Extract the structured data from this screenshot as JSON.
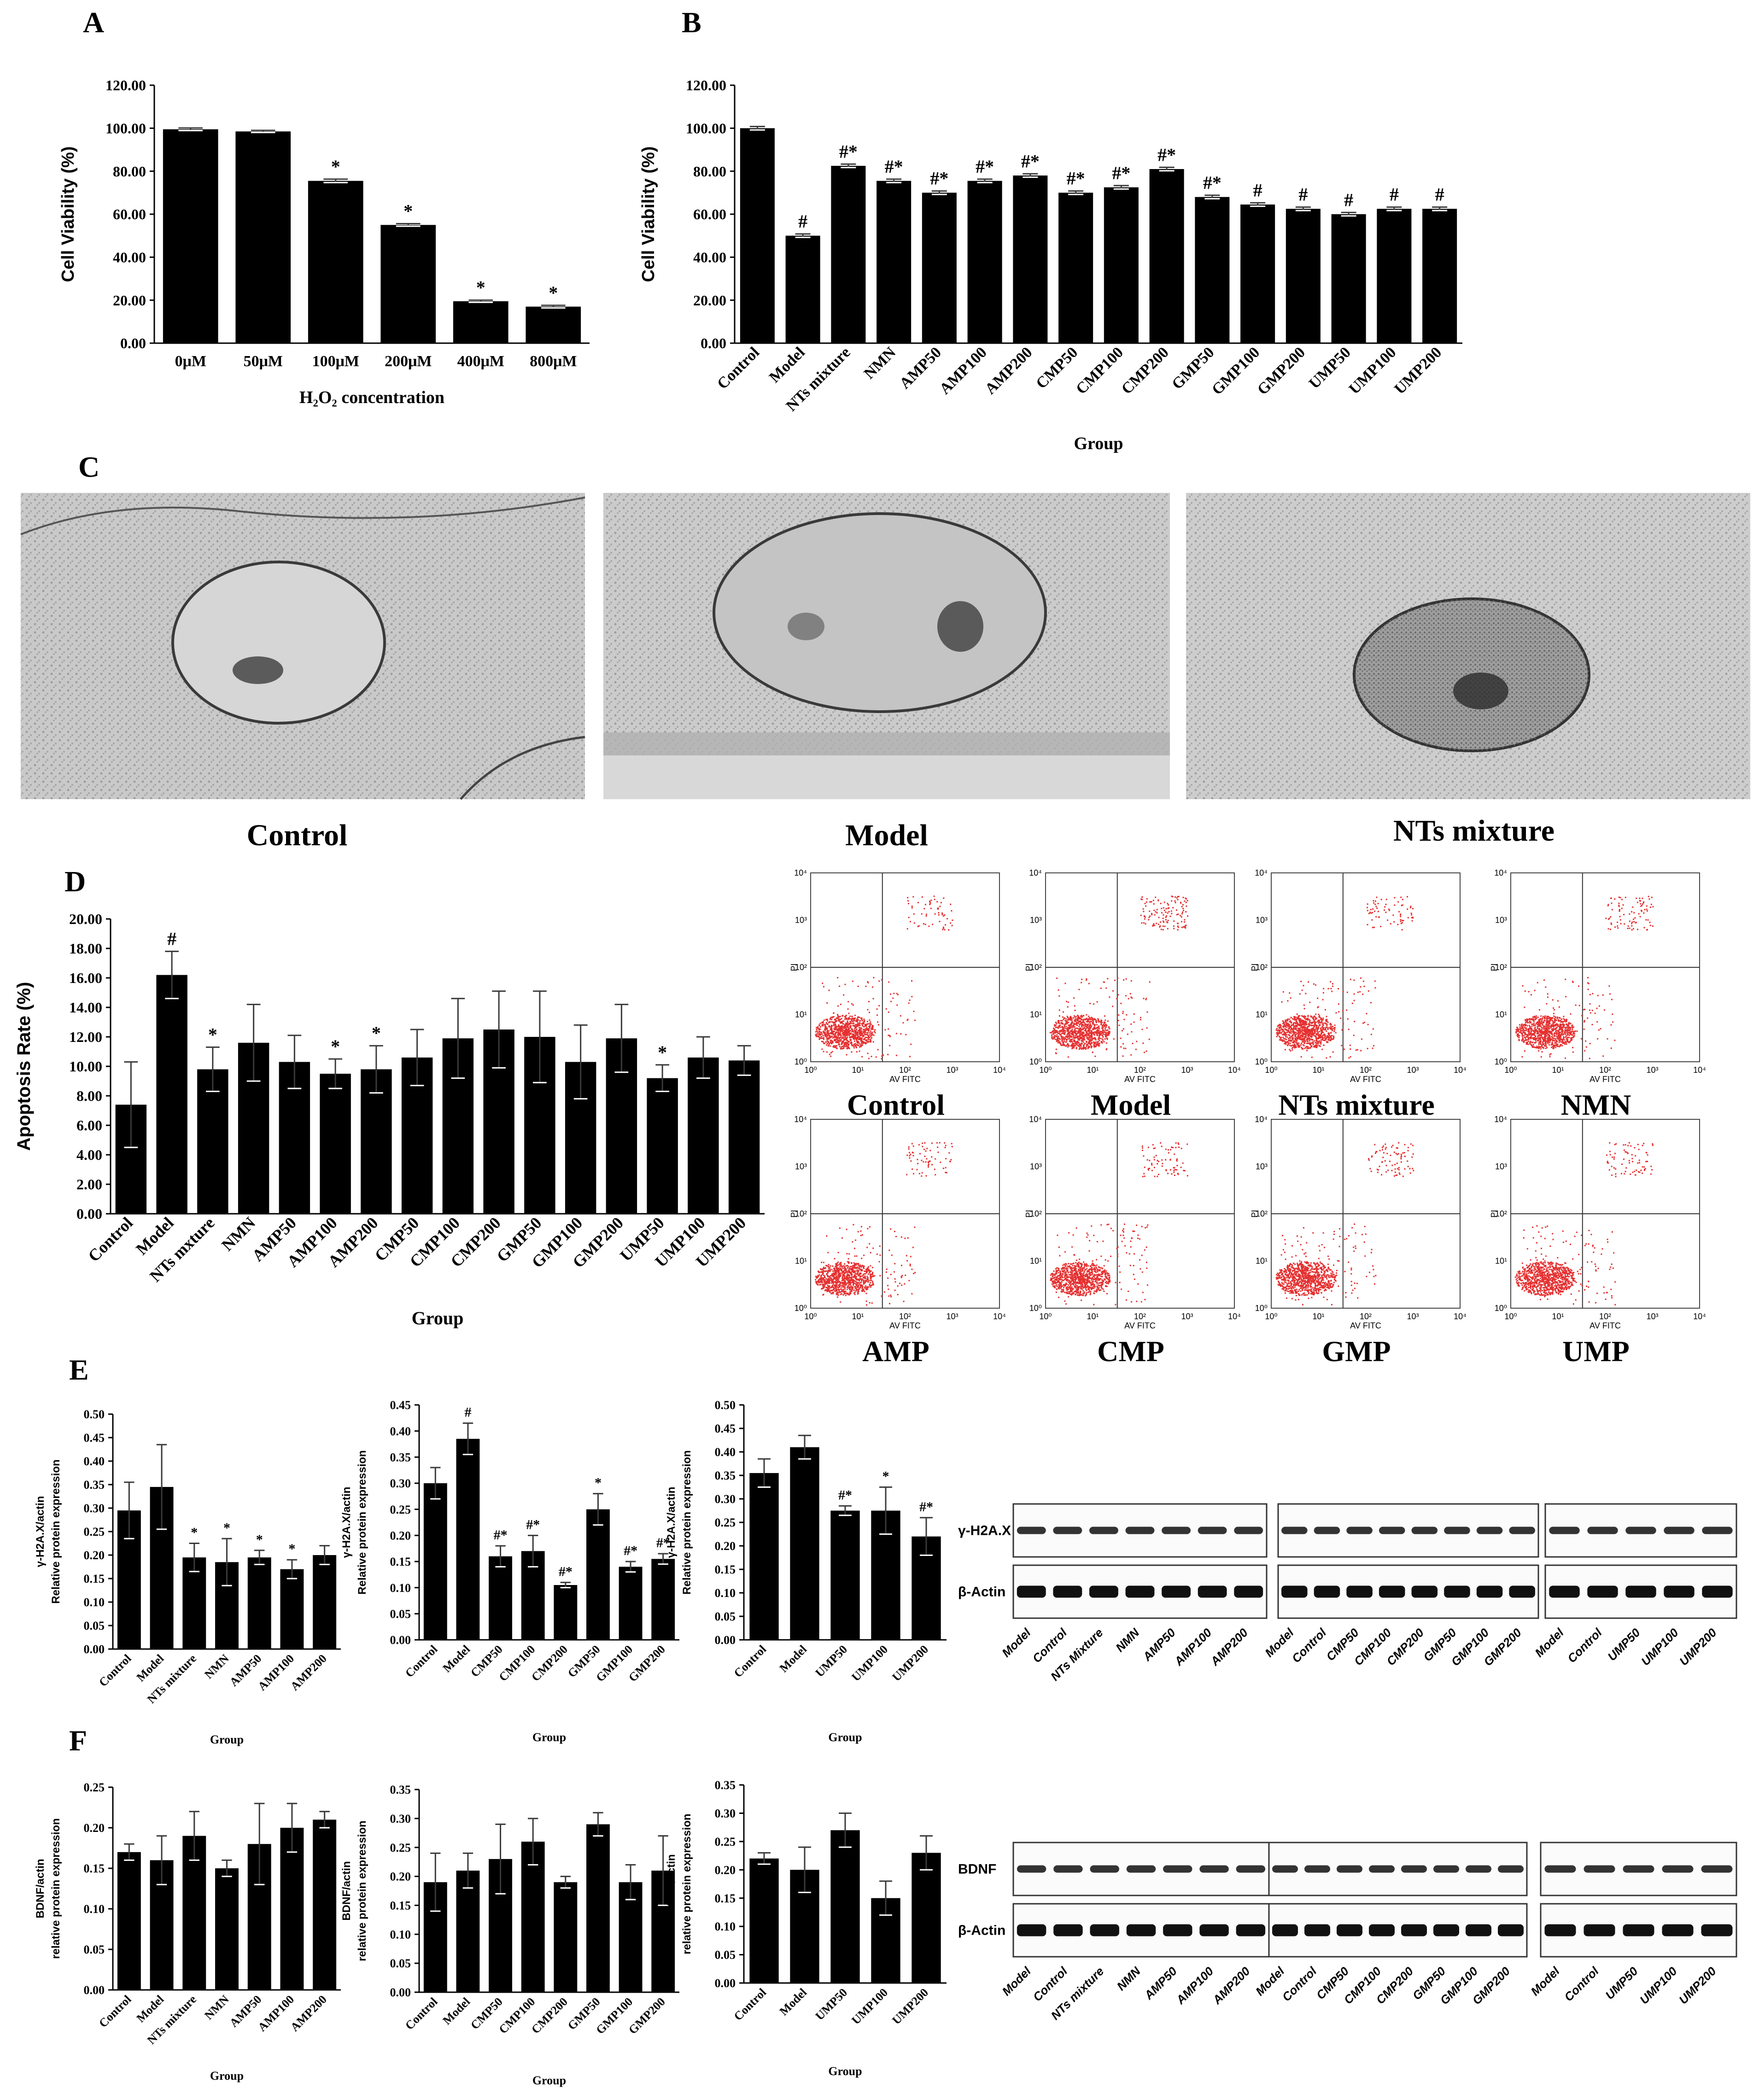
{
  "panel_labels": {
    "A": "A",
    "B": "B",
    "C": "C",
    "D": "D",
    "E": "E",
    "F": "F"
  },
  "panel_c": {
    "captions": [
      "Control",
      "Model",
      "NTs mixture"
    ]
  },
  "panel_d_flow": {
    "axis_x_label": "AV FITC",
    "axis_y_label": "PI",
    "log_ticks": [
      "10⁰",
      "10¹",
      "10²",
      "10³",
      "10⁴"
    ],
    "plots": [
      {
        "label": "Control",
        "ur_level": 0.12
      },
      {
        "label": "Model",
        "ur_level": 0.26
      },
      {
        "label": "NTs mixture",
        "ur_level": 0.14
      },
      {
        "label": "NMN",
        "ur_level": 0.18
      },
      {
        "label": "AMP",
        "ur_level": 0.14
      },
      {
        "label": "CMP",
        "ur_level": 0.15
      },
      {
        "label": "GMP",
        "ur_level": 0.16
      },
      {
        "label": "UMP",
        "ur_level": 0.15
      }
    ]
  },
  "blots": {
    "E": {
      "rows": [
        "γ-H2A.X",
        "β-Actin"
      ],
      "lanes": [
        [
          "Model",
          "Control",
          "NTs Mixture",
          "NMN",
          "AMP50",
          "AMP100",
          "AMP200"
        ],
        [
          "Model",
          "Control",
          "CMP50",
          "CMP100",
          "CMP200",
          "GMP50",
          "GMP100",
          "GMP200"
        ],
        [
          "Model",
          "Control",
          "UMP50",
          "UMP100",
          "UMP200"
        ]
      ]
    },
    "F": {
      "rows": [
        "BDNF",
        "β-Actin"
      ],
      "lanes": [
        [
          "Model",
          "Control",
          "NTs mixture",
          "NMN",
          "AMP50",
          "AMP100",
          "AMP200"
        ],
        [
          "Model",
          "Control",
          "CMP50",
          "CMP100",
          "CMP200",
          "GMP50",
          "GMP100",
          "GMP200"
        ],
        [
          "Model",
          "Control",
          "UMP50",
          "UMP100",
          "UMP200"
        ]
      ]
    }
  },
  "chart_data": [
    {
      "id": "A",
      "type": "bar",
      "categories": [
        "0μM",
        "50μM",
        "100μM",
        "200μM",
        "400μM",
        "800μM"
      ],
      "values": [
        99.5,
        98.5,
        75.5,
        55.0,
        19.5,
        17.0
      ],
      "errors": [
        0.6,
        0.5,
        0.8,
        0.6,
        0.5,
        0.6
      ],
      "annotations": [
        "",
        "",
        "*",
        "*",
        "*",
        "*"
      ],
      "ylim": [
        0,
        120
      ],
      "yticks": [
        "0.00",
        "20.00",
        "40.00",
        "60.00",
        "80.00",
        "100.00",
        "120.00"
      ],
      "ylabel": "Cell Viability (%)",
      "xlabel": "H₂O₂ concentration"
    },
    {
      "id": "B",
      "type": "bar",
      "categories": [
        "Control",
        "Model",
        "NTs mixture",
        "NMN",
        "AMP50",
        "AMP100",
        "AMP200",
        "CMP50",
        "CMP100",
        "CMP200",
        "GMP50",
        "GMP100",
        "GMP200",
        "UMP50",
        "UMP100",
        "UMP200"
      ],
      "values": [
        100.0,
        50.0,
        82.5,
        75.5,
        70.0,
        75.5,
        78.0,
        70.0,
        72.5,
        81.0,
        68.0,
        64.5,
        62.5,
        60.0,
        62.5,
        62.5
      ],
      "errors": [
        0.8,
        0.8,
        0.8,
        0.8,
        0.8,
        0.8,
        0.8,
        0.8,
        0.8,
        0.8,
        0.8,
        0.8,
        0.8,
        0.8,
        0.8,
        0.8
      ],
      "annotations": [
        "",
        "#",
        "#*",
        "#*",
        "#*",
        "#*",
        "#*",
        "#*",
        "#*",
        "#*",
        "#*",
        "#",
        "#",
        "#",
        "#",
        "#"
      ],
      "ylim": [
        0,
        120
      ],
      "yticks": [
        "0.00",
        "20.00",
        "40.00",
        "60.00",
        "80.00",
        "100.00",
        "120.00"
      ],
      "ylabel": "Cell Viability (%)",
      "xlabel": "Group"
    },
    {
      "id": "D",
      "type": "bar",
      "categories": [
        "Control",
        "Model",
        "NTs mxture",
        "NMN",
        "AMP50",
        "AMP100",
        "AMP200",
        "CMP50",
        "CMP100",
        "CMP200",
        "GMP50",
        "GMP100",
        "GMP200",
        "UMP50",
        "UMP100",
        "UMP200"
      ],
      "values": [
        7.4,
        16.2,
        9.8,
        11.6,
        10.3,
        9.5,
        9.8,
        10.6,
        11.9,
        12.5,
        12.0,
        10.3,
        11.9,
        9.2,
        10.6,
        10.4
      ],
      "errors": [
        2.9,
        1.6,
        1.5,
        2.6,
        1.8,
        1.0,
        1.6,
        1.9,
        2.7,
        2.6,
        3.1,
        2.5,
        2.3,
        0.9,
        1.4,
        1.0
      ],
      "annotations": [
        "",
        "#",
        "*",
        "",
        "",
        "*",
        "*",
        "",
        "",
        "",
        "",
        "",
        "",
        "*",
        "",
        ""
      ],
      "ylim": [
        0,
        20
      ],
      "yticks": [
        "0.00",
        "2.00",
        "4.00",
        "6.00",
        "8.00",
        "10.00",
        "12.00",
        "14.00",
        "16.00",
        "18.00",
        "20.00"
      ],
      "ylabel": "Apoptosis Rate (%)",
      "xlabel": "Group"
    },
    {
      "id": "E1",
      "type": "bar",
      "categories": [
        "Control",
        "Model",
        "NTs mixture",
        "NMN",
        "AMP50",
        "AMP100",
        "AMP200"
      ],
      "values": [
        0.295,
        0.345,
        0.195,
        0.185,
        0.195,
        0.17,
        0.2
      ],
      "errors": [
        0.06,
        0.09,
        0.03,
        0.05,
        0.015,
        0.02,
        0.02
      ],
      "annotations": [
        "",
        "",
        "*",
        "*",
        "*",
        "*",
        ""
      ],
      "ylim": [
        0,
        0.5
      ],
      "yticks": [
        "0.00",
        "0.05",
        "0.10",
        "0.15",
        "0.20",
        "0.25",
        "0.30",
        "0.35",
        "0.40",
        "0.45",
        "0.50"
      ],
      "ylabel": [
        "γ-H2A.X/actin",
        "Relative protein expression"
      ],
      "xlabel": "Group"
    },
    {
      "id": "E2",
      "type": "bar",
      "categories": [
        "Control",
        "Model",
        "CMP50",
        "CMP100",
        "CMP200",
        "GMP50",
        "GMP100",
        "GMP200"
      ],
      "values": [
        0.3,
        0.385,
        0.16,
        0.17,
        0.105,
        0.25,
        0.14,
        0.155
      ],
      "errors": [
        0.03,
        0.03,
        0.02,
        0.03,
        0.005,
        0.03,
        0.01,
        0.01
      ],
      "annotations": [
        "",
        "#",
        "#*",
        "#*",
        "#*",
        "*",
        "#*",
        "#*"
      ],
      "ylim": [
        0,
        0.45
      ],
      "yticks": [
        "0.00",
        "0.05",
        "0.10",
        "0.15",
        "0.20",
        "0.25",
        "0.30",
        "0.35",
        "0.40",
        "0.45"
      ],
      "ylabel": [
        "γ-H2A.X/actin",
        "Relative protein expression"
      ],
      "xlabel": "Group"
    },
    {
      "id": "E3",
      "type": "bar",
      "categories": [
        "Control",
        "Model",
        "UMP50",
        "UMP100",
        "UMP200"
      ],
      "values": [
        0.355,
        0.41,
        0.275,
        0.275,
        0.22
      ],
      "errors": [
        0.03,
        0.025,
        0.01,
        0.05,
        0.04
      ],
      "annotations": [
        "",
        "",
        "#*",
        "*",
        "#*"
      ],
      "ylim": [
        0,
        0.5
      ],
      "yticks": [
        "0.00",
        "0.05",
        "0.10",
        "0.15",
        "0.20",
        "0.25",
        "0.30",
        "0.35",
        "0.40",
        "0.45",
        "0.50"
      ],
      "ylabel": [
        "γ-H2A.X/actin",
        "Relative protein expression"
      ],
      "xlabel": "Group"
    },
    {
      "id": "F1",
      "type": "bar",
      "categories": [
        "Control",
        "Model",
        "NTs mixture",
        "NMN",
        "AMP50",
        "AMP100",
        "AMP200"
      ],
      "values": [
        0.17,
        0.16,
        0.19,
        0.15,
        0.18,
        0.2,
        0.21
      ],
      "errors": [
        0.01,
        0.03,
        0.03,
        0.01,
        0.05,
        0.03,
        0.01
      ],
      "annotations": [
        "",
        "",
        "",
        "",
        "",
        "",
        ""
      ],
      "ylim": [
        0,
        0.25
      ],
      "yticks": [
        "0.00",
        "0.05",
        "0.10",
        "0.15",
        "0.20",
        "0.25"
      ],
      "ylabel": [
        "BDNF/actin",
        "relative protein expression"
      ],
      "xlabel": "Group"
    },
    {
      "id": "F2",
      "type": "bar",
      "categories": [
        "Control",
        "Model",
        "CMP50",
        "CMP100",
        "CMP200",
        "GMP50",
        "GMP100",
        "GMP200"
      ],
      "values": [
        0.19,
        0.21,
        0.23,
        0.26,
        0.19,
        0.29,
        0.19,
        0.21
      ],
      "errors": [
        0.05,
        0.03,
        0.06,
        0.04,
        0.01,
        0.02,
        0.03,
        0.06
      ],
      "annotations": [
        "",
        "",
        "",
        "",
        "",
        "",
        "",
        ""
      ],
      "ylim": [
        0,
        0.35
      ],
      "yticks": [
        "0.00",
        "0.05",
        "0.10",
        "0.15",
        "0.20",
        "0.25",
        "0.30",
        "0.35"
      ],
      "ylabel": [
        "BDNF/actin",
        "relative protein expression"
      ],
      "xlabel": "Group"
    },
    {
      "id": "F3",
      "type": "bar",
      "categories": [
        "Control",
        "Model",
        "UMP50",
        "UMP100",
        "UMP200"
      ],
      "values": [
        0.22,
        0.2,
        0.27,
        0.15,
        0.23
      ],
      "errors": [
        0.01,
        0.04,
        0.03,
        0.03,
        0.03
      ],
      "annotations": [
        "",
        "",
        "",
        "",
        ""
      ],
      "ylim": [
        0,
        0.35
      ],
      "yticks": [
        "0.00",
        "0.05",
        "0.10",
        "0.15",
        "0.20",
        "0.25",
        "0.30",
        "0.35"
      ],
      "ylabel": [
        "BDNF/actin",
        "relative protein expression"
      ],
      "xlabel": "Group"
    }
  ]
}
